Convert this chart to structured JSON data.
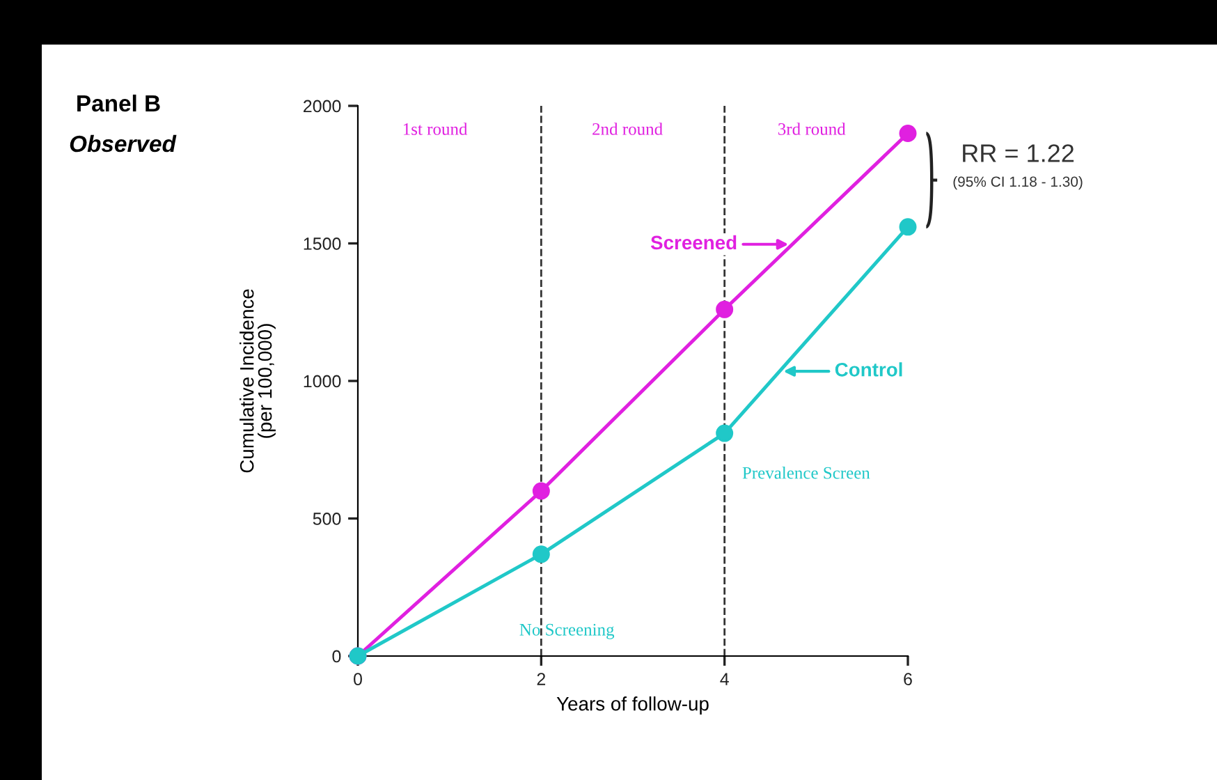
{
  "chart_data": {
    "type": "line",
    "title": "Panel B",
    "subtitle": "Observed",
    "xlabel": "Years of follow-up",
    "ylabel": "Cumulative Incidence\n(per 100,000)",
    "x": [
      0,
      2,
      4,
      6
    ],
    "series": [
      {
        "name": "Screened",
        "color": "#e020e0",
        "values": [
          0,
          600,
          1260,
          1900
        ]
      },
      {
        "name": "Control",
        "color": "#20c8c8",
        "values": [
          0,
          370,
          810,
          1560
        ]
      }
    ],
    "xlim": [
      0,
      6
    ],
    "xticks": [
      0,
      2,
      4,
      6
    ],
    "ylim": [
      0,
      2000
    ],
    "yticks": [
      0,
      500,
      1000,
      1500,
      2000
    ],
    "grid": false,
    "legend": "right",
    "marker": "circle",
    "line_style": "solid",
    "ref_lines": [
      {
        "axis": "x",
        "value": 2,
        "color": "#333333",
        "line_style": "dashed"
      },
      {
        "axis": "x",
        "value": 4,
        "color": "#333333",
        "line_style": "dashed"
      }
    ],
    "annotations": [
      "1st round",
      "2nd round",
      "3rd round",
      "No Screening",
      "Prevalence Screen",
      "RR = 1.22",
      "(95% CI 1.18 - 1.30)"
    ]
  }
}
